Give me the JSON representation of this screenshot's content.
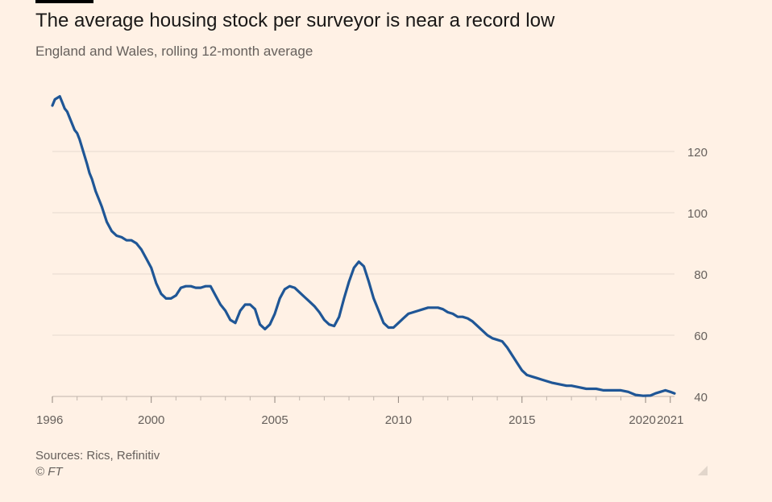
{
  "header": {
    "title": "The average housing stock per surveyor is near a record low",
    "subtitle": "England and Wales, rolling 12-month average"
  },
  "footer": {
    "source": "Sources: Rics, Refinitiv",
    "copyright": "© FT"
  },
  "colors": {
    "background": "#fff1e5",
    "line": "#1f5696",
    "grid": "#e6d9ce",
    "axis": "#66605c"
  },
  "chart_data": {
    "type": "line",
    "title": "The average housing stock per surveyor is near a record low",
    "subtitle": "England and Wales, rolling 12-month average",
    "xlabel": "",
    "ylabel": "",
    "xlim": [
      1996.0,
      2021.17
    ],
    "ylim": [
      40,
      140
    ],
    "yticks": [
      40,
      60,
      80,
      100,
      120
    ],
    "xticks": [
      1996,
      2000,
      2005,
      2010,
      2015,
      2020,
      2021
    ],
    "grid": true,
    "y_axis_side": "right",
    "series": [
      {
        "x": [
          1996.0,
          1996.1,
          1996.2,
          1996.3,
          1996.4,
          1996.5,
          1996.6,
          1996.75,
          1996.9,
          1997.0,
          1997.1,
          1997.25,
          1997.4,
          1997.5,
          1997.6,
          1997.75,
          1997.9,
          1998.0,
          1998.2,
          1998.4,
          1998.6,
          1998.8,
          1999.0,
          1999.2,
          1999.4,
          1999.6,
          1999.8,
          2000.0,
          2000.2,
          2000.4,
          2000.6,
          2000.8,
          2001.0,
          2001.2,
          2001.4,
          2001.6,
          2001.8,
          2002.0,
          2002.2,
          2002.4,
          2002.6,
          2002.8,
          2003.0,
          2003.2,
          2003.4,
          2003.6,
          2003.8,
          2004.0,
          2004.2,
          2004.4,
          2004.6,
          2004.8,
          2005.0,
          2005.2,
          2005.4,
          2005.6,
          2005.8,
          2006.0,
          2006.2,
          2006.4,
          2006.6,
          2006.8,
          2007.0,
          2007.2,
          2007.4,
          2007.6,
          2007.8,
          2008.0,
          2008.2,
          2008.4,
          2008.6,
          2008.8,
          2009.0,
          2009.2,
          2009.4,
          2009.6,
          2009.8,
          2010.0,
          2010.2,
          2010.4,
          2010.6,
          2010.8,
          2011.0,
          2011.2,
          2011.4,
          2011.6,
          2011.8,
          2012.0,
          2012.2,
          2012.4,
          2012.6,
          2012.8,
          2013.0,
          2013.2,
          2013.4,
          2013.6,
          2013.8,
          2014.0,
          2014.2,
          2014.4,
          2014.6,
          2014.8,
          2015.0,
          2015.2,
          2015.4,
          2015.6,
          2015.8,
          2016.0,
          2016.2,
          2016.5,
          2016.8,
          2017.0,
          2017.3,
          2017.6,
          2018.0,
          2018.3,
          2018.6,
          2019.0,
          2019.3,
          2019.6,
          2019.9,
          2020.2,
          2020.4,
          2020.6,
          2020.8,
          2021.0,
          2021.17
        ],
        "y": [
          135,
          137,
          137.5,
          138,
          136,
          134,
          133,
          130,
          127,
          126,
          124,
          120,
          116,
          113,
          111,
          107,
          104,
          102,
          97,
          94,
          92.5,
          92,
          91,
          91,
          90,
          88,
          85,
          82,
          77,
          73.5,
          72,
          72,
          73,
          75.5,
          76,
          76,
          75.5,
          75.5,
          76,
          76,
          73,
          70,
          68,
          65,
          64,
          68,
          70,
          70,
          68.5,
          63.5,
          62,
          63.5,
          67,
          72,
          75,
          76,
          75.5,
          74,
          72.5,
          71,
          69.5,
          67.5,
          65,
          63.5,
          63,
          66,
          72,
          77.5,
          82,
          84,
          82.5,
          77.5,
          72,
          68,
          64,
          62.5,
          62.5,
          64,
          65.5,
          67,
          67.5,
          68,
          68.5,
          69,
          69,
          69,
          68.5,
          67.5,
          67,
          66,
          66,
          65.5,
          64.5,
          63,
          61.5,
          60,
          59,
          58.5,
          58,
          56,
          53.5,
          51,
          48.5,
          47,
          46.5,
          46,
          45.5,
          45,
          44.5,
          44,
          43.5,
          43.5,
          43,
          42.5,
          42.5,
          42,
          42,
          42,
          41.5,
          40.5,
          40.2,
          40.3,
          41,
          41.5,
          42,
          41.5,
          41
        ]
      }
    ]
  }
}
